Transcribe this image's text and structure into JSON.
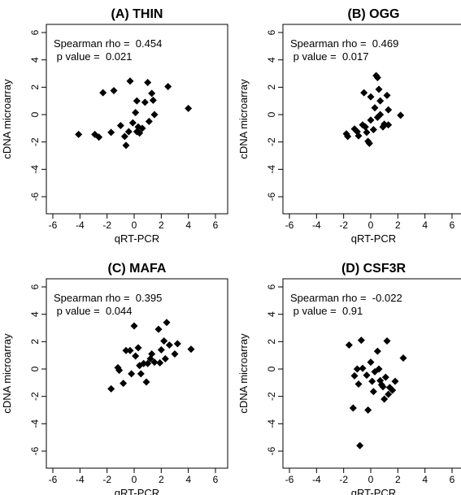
{
  "chart_data": [
    {
      "type": "scatter",
      "title": "(A) THIN",
      "xlabel": "qRT-PCR",
      "ylabel": "cDNA microarray",
      "xlim": [
        -6,
        6
      ],
      "ylim": [
        -6,
        6
      ],
      "xticks": [
        "-6",
        "-4",
        "-2",
        "0",
        "2",
        "4",
        "6"
      ],
      "yticks": [
        "-6",
        "-4",
        "-2",
        "0",
        "2",
        "4",
        "6"
      ],
      "annotation_line1": "Spearman rho =  0.454",
      "annotation_line2": " p value =  0.021",
      "marker": "diamond",
      "marker_color": "#000000",
      "points": [
        [
          -4.1,
          -1.45
        ],
        [
          -2.9,
          -1.45
        ],
        [
          -2.6,
          -1.65
        ],
        [
          -2.3,
          1.6
        ],
        [
          -1.7,
          -1.3
        ],
        [
          -1.5,
          1.75
        ],
        [
          -1.0,
          -0.8
        ],
        [
          -0.7,
          -1.6
        ],
        [
          -0.6,
          -2.25
        ],
        [
          -0.4,
          -1.25
        ],
        [
          -0.3,
          2.45
        ],
        [
          -0.1,
          -0.6
        ],
        [
          0.1,
          0.15
        ],
        [
          0.2,
          -1.25
        ],
        [
          0.3,
          -0.9
        ],
        [
          0.2,
          1.0
        ],
        [
          0.4,
          -1.35
        ],
        [
          0.6,
          -1.0
        ],
        [
          1.0,
          2.35
        ],
        [
          0.8,
          0.9
        ],
        [
          1.3,
          1.55
        ],
        [
          1.4,
          1.05
        ],
        [
          1.5,
          0.0
        ],
        [
          1.1,
          -0.5
        ],
        [
          2.5,
          2.05
        ],
        [
          4.0,
          0.45
        ]
      ]
    },
    {
      "type": "scatter",
      "title": "(B) OGG",
      "xlabel": "qRT-PCR",
      "ylabel": "cDNA microarray",
      "xlim": [
        -6,
        6
      ],
      "ylim": [
        -6,
        6
      ],
      "xticks": [
        "-6",
        "-4",
        "-2",
        "0",
        "2",
        "4",
        "6"
      ],
      "yticks": [
        "-6",
        "-4",
        "-2",
        "0",
        "2",
        "4",
        "6"
      ],
      "annotation_line1": "Spearman rho =  0.469",
      "annotation_line2": " p value =  0.017",
      "marker": "diamond",
      "marker_color": "#000000",
      "points": [
        [
          -1.8,
          -1.4
        ],
        [
          -1.7,
          -1.6
        ],
        [
          -1.2,
          -1.05
        ],
        [
          -1.0,
          -1.25
        ],
        [
          -0.9,
          -1.55
        ],
        [
          -0.6,
          -0.75
        ],
        [
          -0.5,
          1.6
        ],
        [
          -0.4,
          -0.9
        ],
        [
          -0.3,
          -1.3
        ],
        [
          -0.2,
          -1.95
        ],
        [
          -0.1,
          -2.1
        ],
        [
          0.0,
          1.3
        ],
        [
          0.0,
          -0.4
        ],
        [
          0.2,
          -1.1
        ],
        [
          0.3,
          0.5
        ],
        [
          0.4,
          2.85
        ],
        [
          0.5,
          2.7
        ],
        [
          0.5,
          -0.2
        ],
        [
          0.6,
          1.85
        ],
        [
          0.7,
          0.0
        ],
        [
          0.7,
          1.0
        ],
        [
          0.9,
          -0.9
        ],
        [
          1.0,
          -0.7
        ],
        [
          1.2,
          1.4
        ],
        [
          1.3,
          0.35
        ],
        [
          1.3,
          -0.75
        ],
        [
          2.2,
          -0.05
        ]
      ]
    },
    {
      "type": "scatter",
      "title": "(C) MAFA",
      "xlabel": "qRT-PCR",
      "ylabel": "cDNA microarray",
      "xlim": [
        -6,
        6
      ],
      "ylim": [
        -6,
        6
      ],
      "xticks": [
        "-6",
        "-4",
        "-2",
        "0",
        "2",
        "4",
        "6"
      ],
      "yticks": [
        "-6",
        "-4",
        "-2",
        "0",
        "2",
        "4",
        "6"
      ],
      "annotation_line1": "Spearman rho =  0.395",
      "annotation_line2": " p value =  0.044",
      "marker": "diamond",
      "marker_color": "#000000",
      "points": [
        [
          -1.7,
          -1.45
        ],
        [
          -1.2,
          0.1
        ],
        [
          -1.1,
          -0.1
        ],
        [
          -0.8,
          -1.05
        ],
        [
          -0.6,
          1.35
        ],
        [
          -0.3,
          1.35
        ],
        [
          -0.2,
          -0.35
        ],
        [
          0.0,
          3.15
        ],
        [
          0.1,
          0.95
        ],
        [
          0.3,
          1.55
        ],
        [
          0.4,
          0.25
        ],
        [
          0.5,
          -0.35
        ],
        [
          0.7,
          0.4
        ],
        [
          0.9,
          -0.95
        ],
        [
          1.0,
          0.4
        ],
        [
          1.2,
          0.75
        ],
        [
          1.3,
          1.1
        ],
        [
          1.5,
          0.5
        ],
        [
          1.8,
          2.9
        ],
        [
          1.9,
          0.45
        ],
        [
          2.0,
          1.4
        ],
        [
          2.2,
          2.05
        ],
        [
          2.3,
          0.75
        ],
        [
          2.4,
          3.4
        ],
        [
          2.6,
          1.75
        ],
        [
          3.0,
          1.1
        ],
        [
          3.2,
          1.85
        ],
        [
          4.2,
          1.45
        ]
      ]
    },
    {
      "type": "scatter",
      "title": "(D) CSF3R",
      "xlabel": "qRT-PCR",
      "ylabel": "cDNA microarray",
      "xlim": [
        -6,
        6
      ],
      "ylim": [
        -6,
        6
      ],
      "xticks": [
        "-6",
        "-4",
        "-2",
        "0",
        "2",
        "4",
        "6"
      ],
      "yticks": [
        "-6",
        "-4",
        "-2",
        "0",
        "2",
        "4",
        "6"
      ],
      "annotation_line1": "Spearman rho =  -0.022",
      "annotation_line2": " p value =  0.91",
      "marker": "diamond",
      "marker_color": "#000000",
      "points": [
        [
          -1.6,
          1.75
        ],
        [
          -1.3,
          -2.85
        ],
        [
          -1.2,
          -0.5
        ],
        [
          -1.0,
          0.0
        ],
        [
          -0.9,
          -1.1
        ],
        [
          -0.8,
          -5.6
        ],
        [
          -0.7,
          2.1
        ],
        [
          -0.6,
          0.05
        ],
        [
          -0.3,
          -0.45
        ],
        [
          -0.2,
          -3.0
        ],
        [
          0.0,
          0.5
        ],
        [
          0.1,
          -0.9
        ],
        [
          0.2,
          -1.65
        ],
        [
          0.3,
          -0.2
        ],
        [
          0.5,
          1.3
        ],
        [
          0.6,
          0.0
        ],
        [
          0.7,
          -0.85
        ],
        [
          0.8,
          -1.15
        ],
        [
          0.9,
          -1.3
        ],
        [
          1.0,
          -2.2
        ],
        [
          1.1,
          -0.6
        ],
        [
          1.2,
          2.05
        ],
        [
          1.3,
          -1.85
        ],
        [
          1.4,
          -1.35
        ],
        [
          1.6,
          -1.55
        ],
        [
          1.8,
          -0.9
        ],
        [
          2.4,
          0.8
        ]
      ]
    }
  ]
}
